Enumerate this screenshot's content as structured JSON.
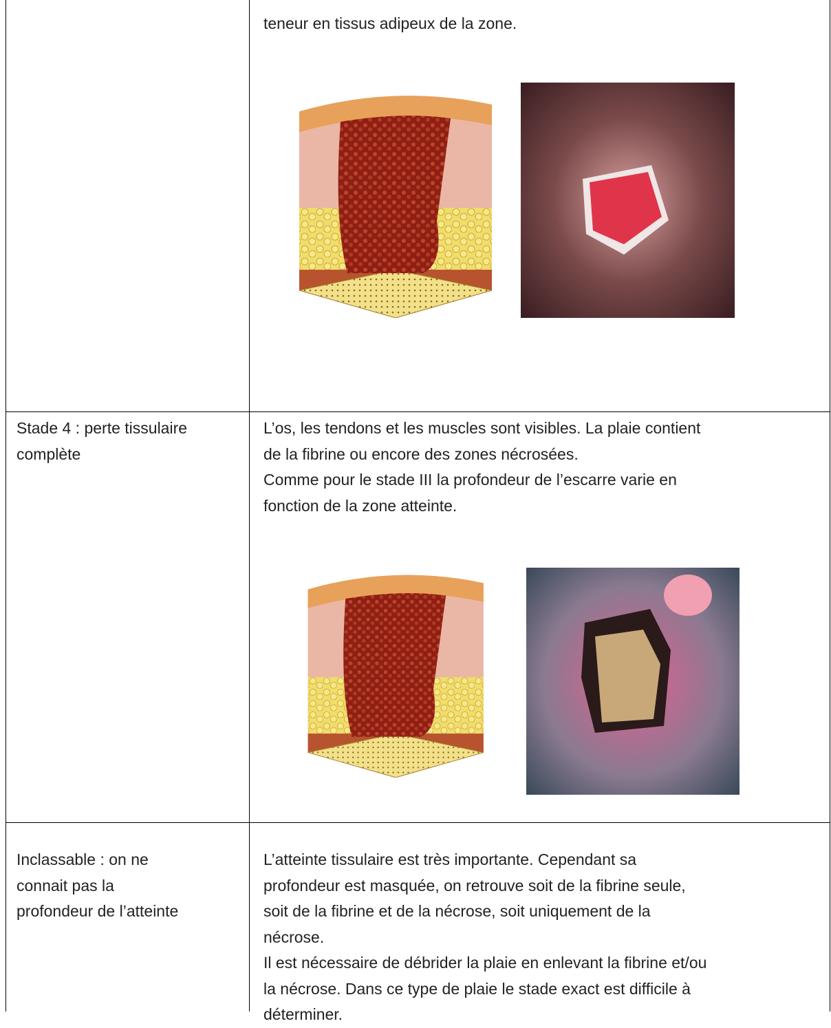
{
  "table": {
    "rows": [
      {
        "stage": [],
        "description": [
          "teneur en tissus adipeux de la zone."
        ]
      },
      {
        "stage": [
          "Stade 4 : perte tissulaire",
          "complète"
        ],
        "description": [
          "L’os, les tendons et les muscles sont visibles. La plaie contient",
          "de la fibrine ou encore des zones nécrosées.",
          "Comme pour le stade III la profondeur de l’escarre varie en",
          "fonction de la zone atteinte."
        ]
      },
      {
        "stage": [
          "Inclassable : on ne",
          "connait pas la",
          "profondeur de l’atteinte"
        ],
        "description": [
          "L’atteinte tissulaire est très importante. Cependant sa",
          "profondeur est masquée, on retrouve soit de la fibrine seule,",
          "soit de la fibrine et de la nécrose, soit uniquement de la",
          "nécrose.",
          "Il est nécessaire de débrider la plaie en enlevant la fibrine et/ou",
          "la nécrose. Dans ce type de plaie le stade exact est difficile à",
          "déterminer."
        ]
      }
    ]
  }
}
